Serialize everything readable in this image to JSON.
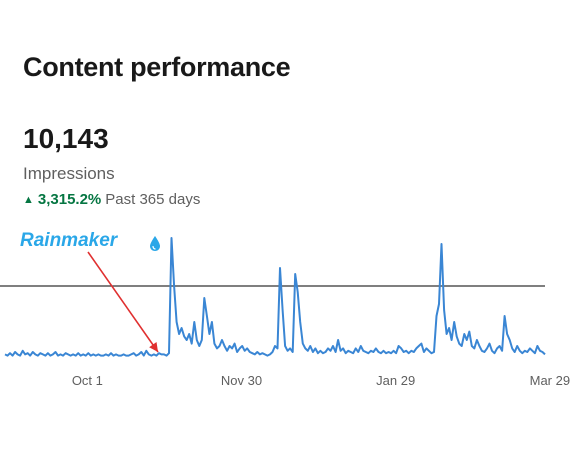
{
  "header": {
    "title": "Content performance",
    "metric_value": "10,143",
    "metric_label": "Impressions",
    "change_value": "3,315.2%",
    "change_period": "Past 365 days"
  },
  "annotation": {
    "label": "Rainmaker",
    "icon": "water-drop-icon",
    "color": "#2aa7e8",
    "arrow_color": "#e03030"
  },
  "colors": {
    "line": "#3a86d4",
    "positive": "#057642",
    "reference_line": "#333333"
  },
  "chart_data": {
    "type": "line",
    "title": "",
    "xlabel": "",
    "ylabel": "",
    "x_tick_labels": [
      "Oct 1",
      "Nov 30",
      "Jan 29",
      "Mar 29"
    ],
    "x_start": "2023-08-28",
    "x_end": "2024-03-31",
    "grid": false,
    "reference_line": 0.6,
    "series": [
      {
        "values": [
          0.03,
          0.02,
          0.04,
          0.02,
          0.05,
          0.03,
          0.02,
          0.06,
          0.03,
          0.04,
          0.02,
          0.05,
          0.03,
          0.02,
          0.04,
          0.03,
          0.02,
          0.04,
          0.02,
          0.03,
          0.05,
          0.02,
          0.03,
          0.02,
          0.04,
          0.03,
          0.02,
          0.03,
          0.02,
          0.04,
          0.02,
          0.03,
          0.02,
          0.04,
          0.02,
          0.03,
          0.02,
          0.03,
          0.02,
          0.02,
          0.03,
          0.02,
          0.04,
          0.02,
          0.03,
          0.02,
          0.02,
          0.03,
          0.02,
          0.02,
          0.03,
          0.04,
          0.02,
          0.03,
          0.05,
          0.02,
          0.06,
          0.03,
          0.02,
          0.03,
          0.02,
          0.04,
          0.03,
          0.03,
          0.02,
          0.04,
          1.0,
          0.6,
          0.3,
          0.2,
          0.25,
          0.18,
          0.15,
          0.2,
          0.12,
          0.3,
          0.15,
          0.1,
          0.15,
          0.5,
          0.35,
          0.2,
          0.3,
          0.12,
          0.08,
          0.1,
          0.15,
          0.1,
          0.06,
          0.1,
          0.08,
          0.12,
          0.05,
          0.08,
          0.1,
          0.06,
          0.08,
          0.05,
          0.04,
          0.03,
          0.05,
          0.03,
          0.04,
          0.03,
          0.02,
          0.03,
          0.05,
          0.1,
          0.08,
          0.75,
          0.4,
          0.1,
          0.06,
          0.08,
          0.05,
          0.7,
          0.55,
          0.3,
          0.12,
          0.08,
          0.06,
          0.1,
          0.05,
          0.08,
          0.04,
          0.06,
          0.04,
          0.05,
          0.08,
          0.06,
          0.1,
          0.05,
          0.15,
          0.06,
          0.08,
          0.04,
          0.06,
          0.05,
          0.04,
          0.08,
          0.05,
          0.1,
          0.06,
          0.05,
          0.04,
          0.06,
          0.05,
          0.08,
          0.05,
          0.04,
          0.06,
          0.04,
          0.05,
          0.04,
          0.06,
          0.04,
          0.1,
          0.08,
          0.05,
          0.06,
          0.04,
          0.06,
          0.05,
          0.08,
          0.1,
          0.12,
          0.05,
          0.08,
          0.06,
          0.04,
          0.05,
          0.35,
          0.45,
          0.95,
          0.4,
          0.2,
          0.25,
          0.15,
          0.3,
          0.18,
          0.12,
          0.1,
          0.2,
          0.15,
          0.22,
          0.1,
          0.08,
          0.15,
          0.1,
          0.06,
          0.05,
          0.08,
          0.12,
          0.06,
          0.04,
          0.08,
          0.1,
          0.06,
          0.35,
          0.2,
          0.15,
          0.08,
          0.05,
          0.1,
          0.06,
          0.04,
          0.06,
          0.05,
          0.08,
          0.06,
          0.04,
          0.1,
          0.06,
          0.05,
          0.03
        ]
      }
    ]
  }
}
